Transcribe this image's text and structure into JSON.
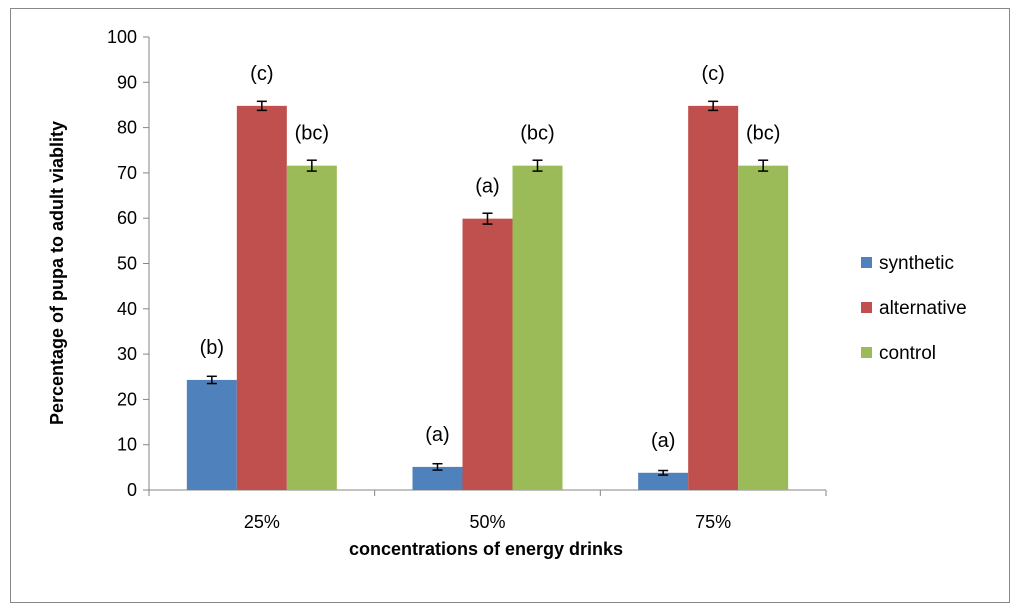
{
  "chart_data": {
    "type": "bar",
    "title": "",
    "xlabel": "concentrations of energy drinks",
    "ylabel": "Percentage of pupa to adult viablity",
    "ylim": [
      0,
      100
    ],
    "yticks": [
      0,
      10,
      20,
      30,
      40,
      50,
      60,
      70,
      80,
      90,
      100
    ],
    "categories": [
      "25%",
      "50%",
      "75%"
    ],
    "grid": false,
    "legend_position": "right",
    "series": [
      {
        "name": "synthetic",
        "color": "#4F81BD",
        "values": [
          24.3,
          5.1,
          3.8
        ],
        "errors": [
          0.8,
          0.7,
          0.5
        ],
        "labels": [
          "(b)",
          "(a)",
          "(a)"
        ]
      },
      {
        "name": "alternative",
        "color": "#C0504D",
        "values": [
          84.8,
          59.9,
          84.8
        ],
        "errors": [
          1.0,
          1.2,
          1.0
        ],
        "labels": [
          "(c)",
          "(a)",
          "(c)"
        ]
      },
      {
        "name": "control",
        "color": "#9BBB59",
        "values": [
          71.6,
          71.6,
          71.6
        ],
        "errors": [
          1.2,
          1.2,
          1.2
        ],
        "labels": [
          "(bc)",
          "(bc)",
          "(bc)"
        ]
      }
    ]
  }
}
